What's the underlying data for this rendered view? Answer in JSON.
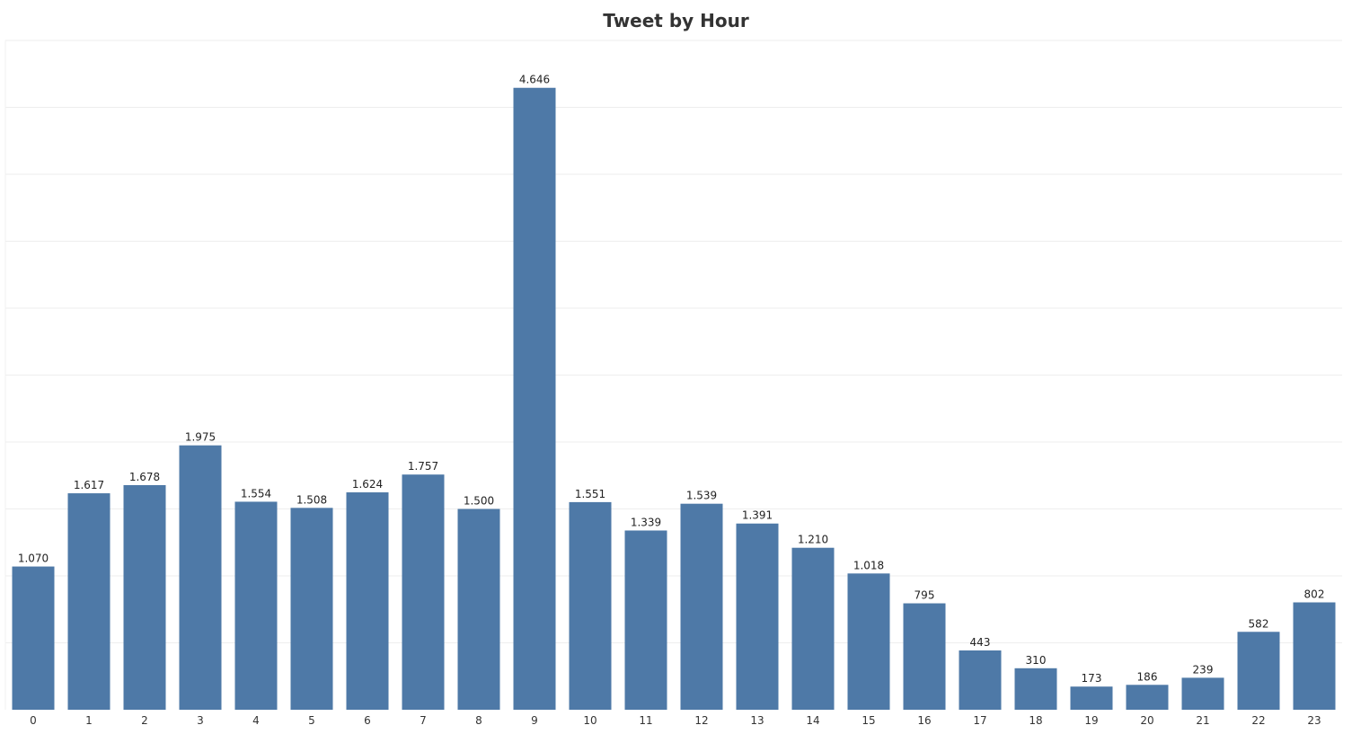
{
  "chart_data": {
    "type": "bar",
    "title": "Tweet by Hour",
    "xlabel": "",
    "ylabel": "",
    "categories": [
      "0",
      "1",
      "2",
      "3",
      "4",
      "5",
      "6",
      "7",
      "8",
      "9",
      "10",
      "11",
      "12",
      "13",
      "14",
      "15",
      "16",
      "17",
      "18",
      "19",
      "20",
      "21",
      "22",
      "23"
    ],
    "values": [
      1070,
      1617,
      1678,
      1975,
      1554,
      1508,
      1624,
      1757,
      1500,
      4646,
      1551,
      1339,
      1539,
      1391,
      1210,
      1018,
      795,
      443,
      310,
      173,
      186,
      239,
      582,
      802
    ],
    "data_labels": [
      "1.070",
      "1.617",
      "1.678",
      "1.975",
      "1.554",
      "1.508",
      "1.624",
      "1.757",
      "1.500",
      "4.646",
      "1.551",
      "1.339",
      "1.539",
      "1.391",
      "1.210",
      "1.018",
      "795",
      "443",
      "310",
      "173",
      "186",
      "239",
      "582",
      "802"
    ],
    "ylim": [
      0,
      5000
    ],
    "grid": true,
    "bar_color": "#4e79a7"
  }
}
